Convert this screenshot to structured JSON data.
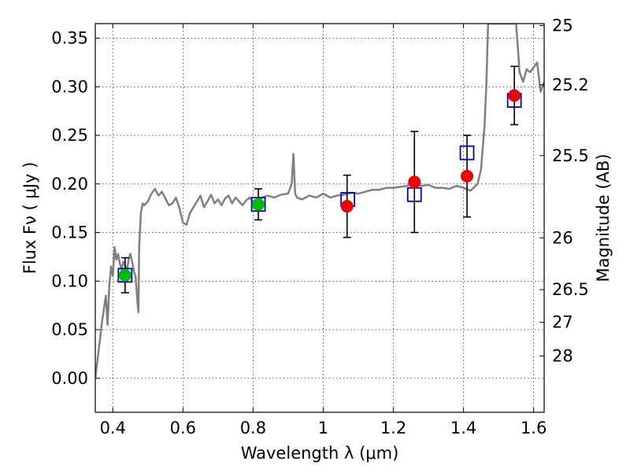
{
  "chart_data": {
    "type": "scatter",
    "title": "",
    "xlabel": "Wavelength  λ (μm)",
    "ylabel": "Flux  Fν  ( μJy )",
    "y2label": "Magnitude (AB)",
    "xlim": [
      0.35,
      1.63
    ],
    "ylim": [
      -0.035,
      0.365
    ],
    "grid": true,
    "x_ticks": [
      0.4,
      0.6,
      0.8,
      1.0,
      1.2,
      1.4,
      1.6
    ],
    "x_tick_labels": [
      "0.4",
      "0.6",
      "0.8",
      "1",
      "1.2",
      "1.4",
      "1.6"
    ],
    "y_ticks": [
      0.0,
      0.05,
      0.1,
      0.15,
      0.2,
      0.25,
      0.3,
      0.35
    ],
    "y_tick_labels": [
      "0.00",
      "0.05",
      "0.10",
      "0.15",
      "0.20",
      "0.25",
      "0.30",
      "0.35"
    ],
    "y2_ticks": [
      {
        "mag": 25,
        "label": "25"
      },
      {
        "mag": 25.2,
        "label": "25.2"
      },
      {
        "mag": 25.5,
        "label": "25.5"
      },
      {
        "mag": 26,
        "label": "26"
      },
      {
        "mag": 26.5,
        "label": "26.5"
      },
      {
        "mag": 27,
        "label": "27"
      },
      {
        "mag": 28,
        "label": "28"
      }
    ],
    "series": [
      {
        "name": "Model spectrum",
        "kind": "line",
        "color": "#808080",
        "x": [
          0.35,
          0.36,
          0.37,
          0.38,
          0.385,
          0.39,
          0.395,
          0.4,
          0.405,
          0.41,
          0.415,
          0.42,
          0.425,
          0.43,
          0.435,
          0.44,
          0.445,
          0.45,
          0.455,
          0.46,
          0.465,
          0.47,
          0.473,
          0.475,
          0.48,
          0.485,
          0.49,
          0.5,
          0.51,
          0.52,
          0.53,
          0.54,
          0.55,
          0.56,
          0.57,
          0.58,
          0.59,
          0.6,
          0.61,
          0.62,
          0.63,
          0.64,
          0.65,
          0.66,
          0.67,
          0.68,
          0.69,
          0.7,
          0.71,
          0.72,
          0.73,
          0.74,
          0.75,
          0.76,
          0.77,
          0.78,
          0.79,
          0.8,
          0.82,
          0.84,
          0.86,
          0.88,
          0.9,
          0.91,
          0.915,
          0.92,
          0.925,
          0.94,
          0.96,
          0.98,
          1.0,
          1.02,
          1.04,
          1.06,
          1.08,
          1.1,
          1.12,
          1.14,
          1.16,
          1.18,
          1.2,
          1.22,
          1.24,
          1.26,
          1.28,
          1.3,
          1.32,
          1.34,
          1.36,
          1.38,
          1.4,
          1.42,
          1.44,
          1.45,
          1.46,
          1.465,
          1.47,
          1.48,
          1.49,
          1.5,
          1.51,
          1.52,
          1.525,
          1.53,
          1.54,
          1.55,
          1.56,
          1.57,
          1.58,
          1.59,
          1.6,
          1.61,
          1.62,
          1.63
        ],
        "y": [
          0.0,
          0.03,
          0.06,
          0.085,
          0.055,
          0.095,
          0.115,
          0.105,
          0.135,
          0.122,
          0.128,
          0.118,
          0.112,
          0.12,
          0.116,
          0.11,
          0.122,
          0.128,
          0.12,
          0.11,
          0.105,
          0.08,
          0.068,
          0.135,
          0.17,
          0.18,
          0.178,
          0.182,
          0.19,
          0.195,
          0.188,
          0.192,
          0.185,
          0.178,
          0.18,
          0.186,
          0.175,
          0.16,
          0.158,
          0.17,
          0.176,
          0.182,
          0.188,
          0.176,
          0.182,
          0.189,
          0.18,
          0.184,
          0.178,
          0.185,
          0.188,
          0.18,
          0.186,
          0.182,
          0.178,
          0.183,
          0.186,
          0.182,
          0.185,
          0.188,
          0.186,
          0.189,
          0.19,
          0.2,
          0.231,
          0.19,
          0.186,
          0.184,
          0.188,
          0.186,
          0.19,
          0.186,
          0.188,
          0.189,
          0.191,
          0.19,
          0.192,
          0.194,
          0.194,
          0.196,
          0.196,
          0.197,
          0.198,
          0.2,
          0.198,
          0.199,
          0.196,
          0.196,
          0.195,
          0.198,
          0.196,
          0.193,
          0.2,
          0.215,
          0.26,
          0.3,
          0.365,
          0.365,
          0.365,
          0.365,
          0.365,
          0.365,
          0.365,
          0.365,
          0.365,
          0.365,
          0.315,
          0.305,
          0.318,
          0.315,
          0.32,
          0.325,
          0.295,
          0.305
        ]
      },
      {
        "name": "Blue open squares (model photometry)",
        "kind": "square",
        "color": "#0000cc",
        "x": [
          0.435,
          0.815,
          1.07,
          1.26,
          1.41,
          1.545
        ],
        "y": [
          0.106,
          0.179,
          0.184,
          0.189,
          0.232,
          0.286
        ]
      },
      {
        "name": "Green points",
        "kind": "circle",
        "color": "#00bb00",
        "x": [
          0.435,
          0.815
        ],
        "y": [
          0.106,
          0.179
        ],
        "yerr": [
          0.018,
          0.016
        ]
      },
      {
        "name": "Red points",
        "kind": "circle",
        "color": "#ee0000",
        "x": [
          1.068,
          1.26,
          1.41,
          1.545
        ],
        "y": [
          0.177,
          0.202,
          0.208,
          0.291
        ],
        "yerr": [
          0.032,
          0.052,
          0.042,
          0.03
        ]
      }
    ]
  }
}
